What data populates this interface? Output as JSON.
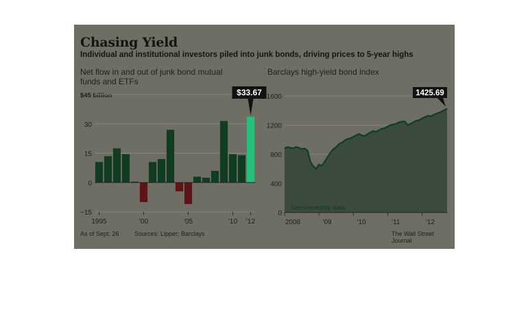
{
  "header": {
    "title": "Chasing Yield",
    "subtitle": "Individual and institutional investors piled into junk bonds, driving prices to 5-year highs"
  },
  "footer": {
    "as_of": "As of Sept. 26",
    "sources": "Sources: Lipper; Barclays",
    "credit": "The Wall Street Journal"
  },
  "colors": {
    "background": "#6f6e65",
    "bar_positive": "#103d22",
    "bar_negative": "#5e1414",
    "bar_highlight": "#27c07a",
    "area_fill": "#3a4a3c",
    "line": "#103d22"
  },
  "chart_data": [
    {
      "type": "bar",
      "title": "Net flow in and out of junk bond mutual funds and ETFs",
      "unit_label": "$45 billion",
      "categories": [
        "1995",
        "1996",
        "1997",
        "1998",
        "1999",
        "2000",
        "2001",
        "2002",
        "2003",
        "2004",
        "2005",
        "2006",
        "2007",
        "2008",
        "2009",
        "2010",
        "2011",
        "2012"
      ],
      "values": [
        10.5,
        13.5,
        17.5,
        14.5,
        0.5,
        -10,
        10.5,
        12,
        27,
        -4.5,
        -11,
        3,
        2.5,
        6,
        31.5,
        14.5,
        14,
        33.67
      ],
      "highlight_index": 17,
      "highlight_label": "$33.67",
      "ylim": [
        -15,
        45
      ],
      "yticks": [
        -15,
        0,
        15,
        30
      ],
      "ytick_labels": [
        "−15",
        "0",
        "15",
        "30"
      ],
      "xtick_labels": [
        {
          "category": "1995",
          "label": "1995"
        },
        {
          "category": "2000",
          "label": "'00"
        },
        {
          "category": "2005",
          "label": "'05"
        },
        {
          "category": "2010",
          "label": "'10"
        },
        {
          "category": "2012",
          "label": "'12"
        }
      ],
      "grid": true
    },
    {
      "type": "area",
      "title": "Barclays high-yield bond index",
      "annotation": "Semi-monthly data",
      "end_label": "1425.69",
      "x": [
        2008.0,
        2008.08,
        2008.17,
        2008.25,
        2008.33,
        2008.42,
        2008.5,
        2008.58,
        2008.67,
        2008.75,
        2008.83,
        2008.92,
        2009.0,
        2009.08,
        2009.17,
        2009.25,
        2009.33,
        2009.42,
        2009.5,
        2009.58,
        2009.67,
        2009.75,
        2009.83,
        2009.92,
        2010.0,
        2010.08,
        2010.17,
        2010.25,
        2010.33,
        2010.42,
        2010.5,
        2010.58,
        2010.67,
        2010.75,
        2010.83,
        2010.92,
        2011.0,
        2011.08,
        2011.17,
        2011.25,
        2011.33,
        2011.42,
        2011.5,
        2011.58,
        2011.67,
        2011.75,
        2011.83,
        2011.92,
        2012.0,
        2012.08,
        2012.17,
        2012.25,
        2012.33,
        2012.42,
        2012.5,
        2012.58,
        2012.67,
        2012.73
      ],
      "y": [
        880,
        900,
        890,
        880,
        900,
        890,
        870,
        880,
        850,
        700,
        640,
        600,
        660,
        640,
        700,
        760,
        820,
        870,
        900,
        940,
        960,
        990,
        1010,
        1020,
        1040,
        1060,
        1080,
        1060,
        1050,
        1080,
        1100,
        1120,
        1110,
        1130,
        1150,
        1160,
        1180,
        1200,
        1210,
        1220,
        1240,
        1250,
        1250,
        1200,
        1220,
        1240,
        1260,
        1270,
        1290,
        1310,
        1330,
        1320,
        1340,
        1360,
        1370,
        1390,
        1410,
        1425.69
      ],
      "ylim": [
        0,
        1600
      ],
      "yticks": [
        0,
        400,
        800,
        1200,
        1600
      ],
      "xlim": [
        2008.0,
        2012.75
      ],
      "xtick_labels": [
        {
          "x": 2008,
          "label": "2008"
        },
        {
          "x": 2009,
          "label": "'09"
        },
        {
          "x": 2010,
          "label": "'10"
        },
        {
          "x": 2011,
          "label": "'11"
        },
        {
          "x": 2012,
          "label": "'12"
        }
      ],
      "grid": true
    }
  ]
}
